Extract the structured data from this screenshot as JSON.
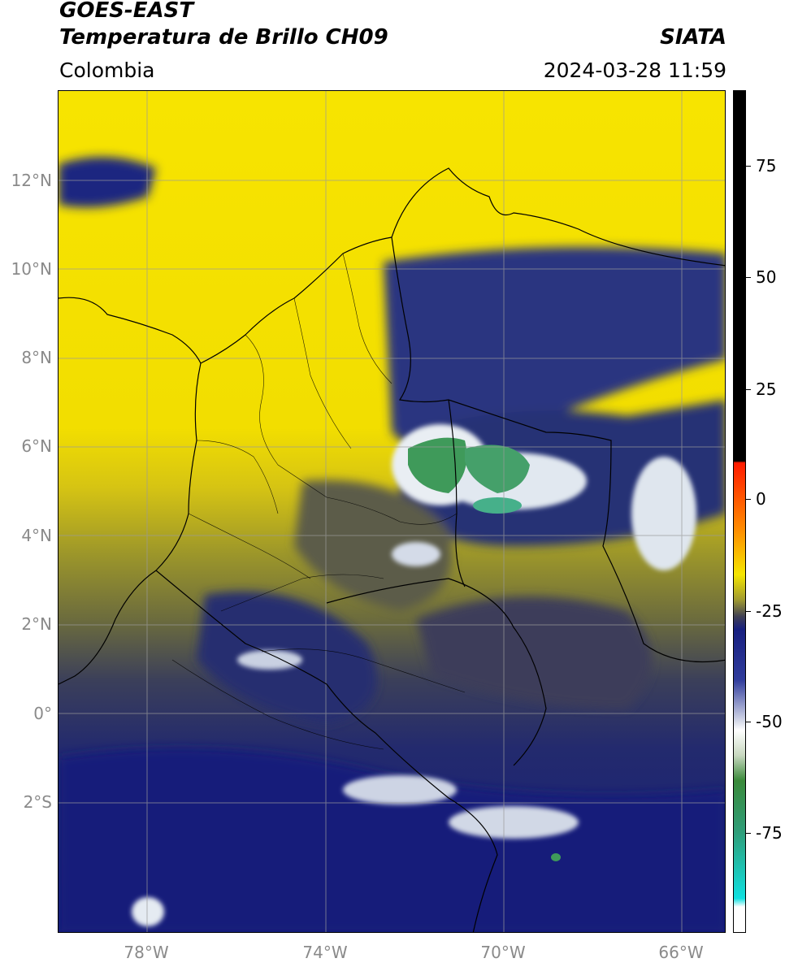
{
  "header": {
    "title_line1": "GOES-EAST",
    "title_line2": "Temperatura de Brillo CH09",
    "source": "SIATA",
    "region": "Colombia",
    "datetime": "2024-03-28 11:59"
  },
  "map": {
    "lat_labels": [
      "12°N",
      "10°N",
      "8°N",
      "6°N",
      "4°N",
      "2°N",
      "0°",
      "2°S"
    ],
    "lon_labels": [
      "78°W",
      "74°W",
      "70°W",
      "66°W"
    ],
    "colors": {
      "warm": "#f6e100",
      "olive": "#8d8a30",
      "dark_olive": "#3d3f55",
      "navy": "#16207a",
      "white": "#eef2f6",
      "green": "#3a9a58",
      "teal": "#3cb58e",
      "border": "#000000",
      "grid": "#9a9a9a"
    }
  },
  "colorbar": {
    "labels": [
      "75",
      "50",
      "25",
      "0",
      "-25",
      "-50",
      "-75"
    ]
  }
}
